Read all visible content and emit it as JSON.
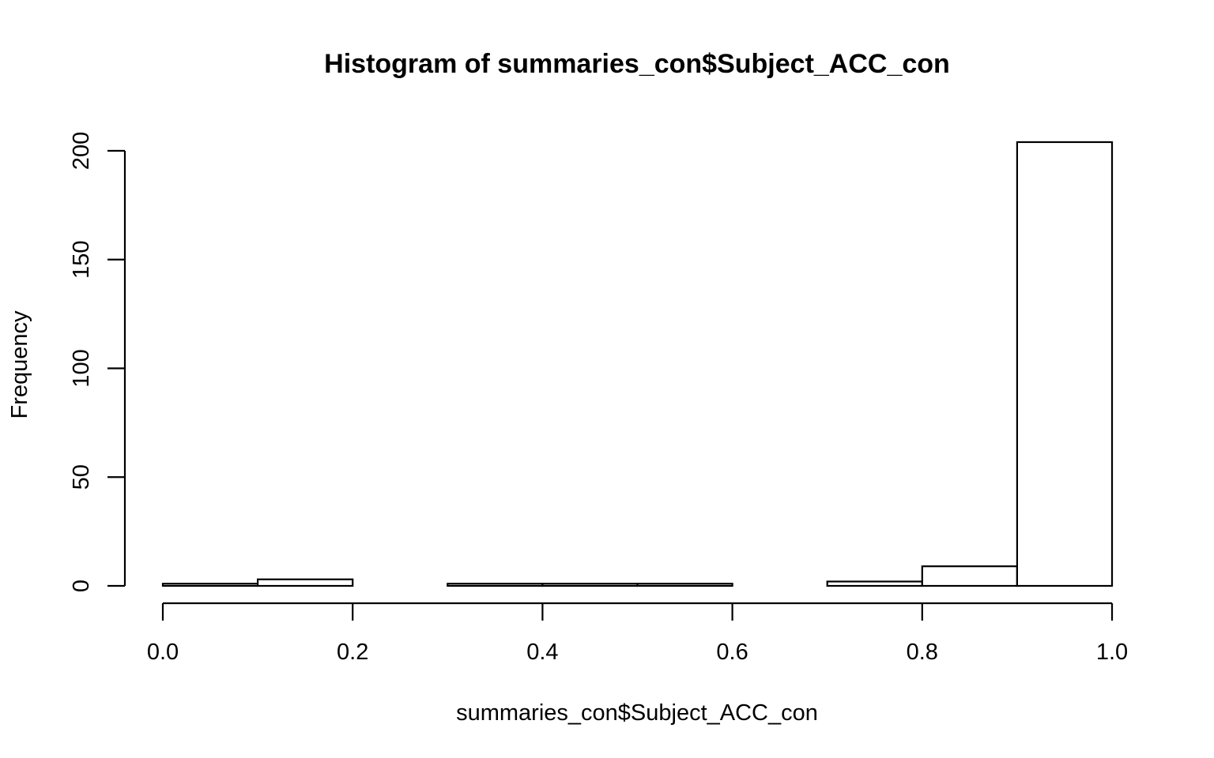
{
  "chart_data": {
    "type": "bar",
    "title": "Histogram of summaries_con$Subject_ACC_con",
    "xlabel": "summaries_con$Subject_ACC_con",
    "ylabel": "Frequency",
    "bins": [
      {
        "x0": 0.0,
        "x1": 0.1,
        "count": 1
      },
      {
        "x0": 0.1,
        "x1": 0.2,
        "count": 3
      },
      {
        "x0": 0.2,
        "x1": 0.3,
        "count": 0
      },
      {
        "x0": 0.3,
        "x1": 0.4,
        "count": 1
      },
      {
        "x0": 0.4,
        "x1": 0.5,
        "count": 1
      },
      {
        "x0": 0.5,
        "x1": 0.6,
        "count": 1
      },
      {
        "x0": 0.6,
        "x1": 0.7,
        "count": 0
      },
      {
        "x0": 0.7,
        "x1": 0.8,
        "count": 2
      },
      {
        "x0": 0.8,
        "x1": 0.9,
        "count": 9
      },
      {
        "x0": 0.9,
        "x1": 1.0,
        "count": 204
      }
    ],
    "xlim": [
      0.0,
      1.0
    ],
    "ylim": [
      0,
      200
    ],
    "xticks": [
      0.0,
      0.2,
      0.4,
      0.6,
      0.8,
      1.0
    ],
    "xtick_labels": [
      "0.0",
      "0.2",
      "0.4",
      "0.6",
      "0.8",
      "1.0"
    ],
    "yticks": [
      0,
      50,
      100,
      150,
      200
    ],
    "ytick_labels": [
      "0",
      "50",
      "100",
      "150",
      "200"
    ],
    "grid": false,
    "legend": "none",
    "bar_fill": "#ffffff",
    "bar_stroke": "#000000"
  }
}
